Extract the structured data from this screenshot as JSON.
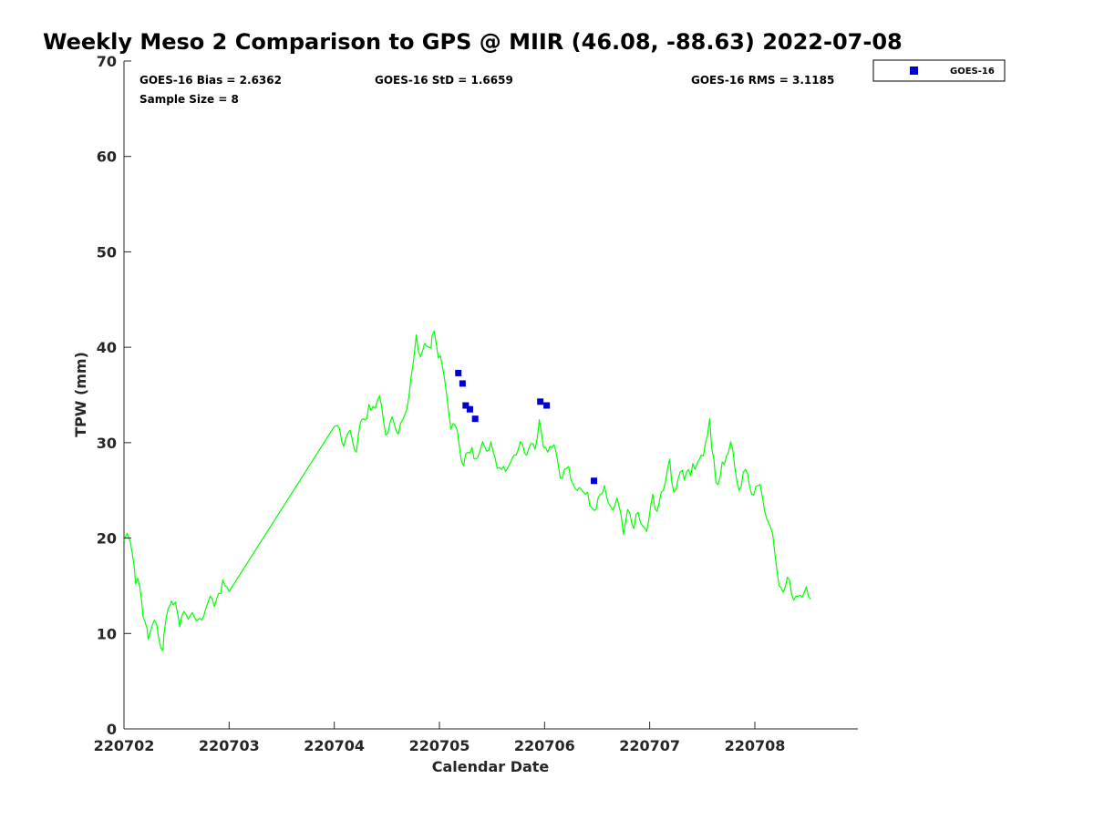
{
  "chart_data": {
    "type": "scatter",
    "title": "Weekly Meso 2 Comparison to GPS @ MIIR (46.08, -88.63) 2022-07-08",
    "xlabel": "Calendar Date",
    "ylabel": "TPW (mm)",
    "xlim": [
      0.0,
      6.98
    ],
    "ylim": [
      0,
      70
    ],
    "x_ticks": [
      {
        "pos": 0,
        "label": "220702"
      },
      {
        "pos": 1,
        "label": "220703"
      },
      {
        "pos": 2,
        "label": "220704"
      },
      {
        "pos": 3,
        "label": "220705"
      },
      {
        "pos": 4,
        "label": "220706"
      },
      {
        "pos": 5,
        "label": "220707"
      },
      {
        "pos": 6,
        "label": "220708"
      }
    ],
    "y_ticks": [
      0,
      10,
      20,
      30,
      40,
      50,
      60,
      70
    ],
    "grid": false,
    "legend_position": "outside-top-right",
    "stats": {
      "bias": "GOES-16 Bias = 2.6362",
      "std": "GOES-16 StD = 1.6659",
      "rms": "GOES-16 RMS = 3.1185",
      "sample": "Sample Size = 8"
    },
    "series": [
      {
        "name": "GPS",
        "kind": "line",
        "color": "#00ff00",
        "points": [
          [
            0.0,
            19.8
          ],
          [
            0.03,
            20.5
          ],
          [
            0.06,
            19.6
          ],
          [
            0.08,
            18.3
          ],
          [
            0.1,
            16.8
          ],
          [
            0.11,
            15.2
          ],
          [
            0.13,
            15.8
          ],
          [
            0.15,
            14.9
          ],
          [
            0.17,
            13.2
          ],
          [
            0.18,
            11.8
          ],
          [
            0.2,
            11.2
          ],
          [
            0.22,
            10.5
          ],
          [
            0.23,
            9.4
          ],
          [
            0.25,
            10.1
          ],
          [
            0.27,
            10.9
          ],
          [
            0.29,
            11.4
          ],
          [
            0.31,
            11.0
          ],
          [
            0.33,
            9.5
          ],
          [
            0.35,
            8.5
          ],
          [
            0.37,
            8.2
          ],
          [
            0.38,
            9.9
          ],
          [
            0.4,
            11.5
          ],
          [
            0.42,
            12.6
          ],
          [
            0.44,
            13.0
          ],
          [
            0.45,
            13.4
          ],
          [
            0.47,
            13.0
          ],
          [
            0.49,
            13.3
          ],
          [
            0.5,
            12.6
          ],
          [
            0.52,
            11.5
          ],
          [
            0.53,
            10.7
          ],
          [
            0.55,
            11.8
          ],
          [
            0.57,
            12.3
          ],
          [
            0.59,
            12.0
          ],
          [
            0.61,
            11.5
          ],
          [
            0.63,
            11.9
          ],
          [
            0.65,
            12.2
          ],
          [
            0.67,
            11.7
          ],
          [
            0.69,
            11.3
          ],
          [
            0.72,
            11.6
          ],
          [
            0.74,
            11.4
          ],
          [
            0.76,
            11.9
          ],
          [
            0.78,
            12.7
          ],
          [
            0.8,
            13.3
          ],
          [
            0.82,
            13.9
          ],
          [
            0.84,
            13.6
          ],
          [
            0.86,
            12.8
          ],
          [
            0.88,
            13.6
          ],
          [
            0.9,
            14.2
          ],
          [
            0.92,
            14.2
          ],
          [
            0.94,
            15.6
          ],
          [
            0.96,
            15.0
          ],
          [
            0.98,
            14.9
          ],
          [
            1.0,
            14.4
          ],
          [
            2.0,
            31.7
          ],
          [
            2.03,
            31.8
          ],
          [
            2.05,
            31.5
          ],
          [
            2.07,
            30.2
          ],
          [
            2.09,
            29.6
          ],
          [
            2.11,
            30.5
          ],
          [
            2.13,
            31.0
          ],
          [
            2.15,
            31.3
          ],
          [
            2.17,
            30.4
          ],
          [
            2.19,
            29.3
          ],
          [
            2.21,
            29.0
          ],
          [
            2.23,
            30.9
          ],
          [
            2.25,
            32.2
          ],
          [
            2.27,
            32.5
          ],
          [
            2.29,
            32.4
          ],
          [
            2.31,
            32.5
          ],
          [
            2.33,
            34.0
          ],
          [
            2.35,
            33.4
          ],
          [
            2.37,
            33.8
          ],
          [
            2.39,
            33.6
          ],
          [
            2.41,
            34.4
          ],
          [
            2.43,
            34.9
          ],
          [
            2.45,
            33.8
          ],
          [
            2.47,
            32.1
          ],
          [
            2.49,
            30.8
          ],
          [
            2.51,
            31.0
          ],
          [
            2.53,
            32.1
          ],
          [
            2.55,
            32.7
          ],
          [
            2.57,
            32.0
          ],
          [
            2.59,
            31.2
          ],
          [
            2.61,
            30.9
          ],
          [
            2.63,
            32.0
          ],
          [
            2.65,
            32.4
          ],
          [
            2.67,
            32.9
          ],
          [
            2.69,
            33.5
          ],
          [
            2.71,
            34.8
          ],
          [
            2.73,
            36.8
          ],
          [
            2.75,
            38.3
          ],
          [
            2.77,
            40.2
          ],
          [
            2.78,
            41.3
          ],
          [
            2.8,
            39.6
          ],
          [
            2.82,
            39.0
          ],
          [
            2.84,
            39.6
          ],
          [
            2.86,
            40.4
          ],
          [
            2.88,
            40.1
          ],
          [
            2.9,
            40.0
          ],
          [
            2.92,
            39.9
          ],
          [
            2.93,
            41.2
          ],
          [
            2.95,
            41.7
          ],
          [
            2.97,
            40.4
          ],
          [
            2.99,
            38.9
          ],
          [
            3.01,
            39.1
          ],
          [
            3.03,
            37.9
          ],
          [
            3.05,
            36.6
          ],
          [
            3.07,
            34.9
          ],
          [
            3.09,
            33.0
          ],
          [
            3.11,
            31.4
          ],
          [
            3.13,
            32.0
          ],
          [
            3.15,
            31.8
          ],
          [
            3.17,
            31.3
          ],
          [
            3.19,
            29.6
          ],
          [
            3.21,
            28.0
          ],
          [
            3.23,
            27.6
          ],
          [
            3.25,
            28.8
          ],
          [
            3.27,
            29.0
          ],
          [
            3.29,
            28.9
          ],
          [
            3.31,
            29.5
          ],
          [
            3.33,
            28.3
          ],
          [
            3.35,
            28.3
          ],
          [
            3.37,
            28.6
          ],
          [
            3.39,
            29.3
          ],
          [
            3.41,
            30.1
          ],
          [
            3.43,
            29.6
          ],
          [
            3.45,
            29.1
          ],
          [
            3.47,
            29.2
          ],
          [
            3.49,
            30.1
          ],
          [
            3.51,
            29.1
          ],
          [
            3.53,
            28.4
          ],
          [
            3.55,
            27.3
          ],
          [
            3.57,
            27.4
          ],
          [
            3.59,
            27.2
          ],
          [
            3.61,
            27.5
          ],
          [
            3.63,
            27.0
          ],
          [
            3.65,
            27.4
          ],
          [
            3.67,
            27.8
          ],
          [
            3.69,
            28.3
          ],
          [
            3.71,
            28.7
          ],
          [
            3.73,
            28.7
          ],
          [
            3.75,
            29.3
          ],
          [
            3.77,
            30.1
          ],
          [
            3.79,
            29.9
          ],
          [
            3.81,
            28.9
          ],
          [
            3.83,
            28.7
          ],
          [
            3.85,
            29.4
          ],
          [
            3.87,
            29.9
          ],
          [
            3.89,
            29.9
          ],
          [
            3.91,
            29.3
          ],
          [
            3.93,
            30.4
          ],
          [
            3.95,
            32.4
          ],
          [
            3.97,
            31.0
          ],
          [
            3.99,
            29.5
          ],
          [
            4.01,
            29.5
          ],
          [
            4.03,
            29.0
          ],
          [
            4.05,
            29.6
          ],
          [
            4.07,
            29.5
          ],
          [
            4.09,
            29.8
          ],
          [
            4.11,
            29.0
          ],
          [
            4.13,
            27.7
          ],
          [
            4.15,
            26.3
          ],
          [
            4.17,
            26.3
          ],
          [
            4.19,
            27.2
          ],
          [
            4.21,
            27.3
          ],
          [
            4.23,
            27.5
          ],
          [
            4.25,
            26.1
          ],
          [
            4.27,
            25.7
          ],
          [
            4.29,
            25.2
          ],
          [
            4.31,
            25.0
          ],
          [
            4.33,
            25.3
          ],
          [
            4.35,
            25.1
          ],
          [
            4.37,
            24.8
          ],
          [
            4.39,
            24.6
          ],
          [
            4.41,
            24.8
          ],
          [
            4.43,
            23.4
          ],
          [
            4.45,
            23.2
          ],
          [
            4.47,
            22.9
          ],
          [
            4.49,
            23.0
          ],
          [
            4.51,
            24.2
          ],
          [
            4.53,
            24.6
          ],
          [
            4.55,
            24.7
          ],
          [
            4.57,
            25.5
          ],
          [
            4.59,
            24.3
          ],
          [
            4.61,
            23.6
          ],
          [
            4.63,
            23.3
          ],
          [
            4.65,
            22.9
          ],
          [
            4.67,
            23.5
          ],
          [
            4.69,
            24.2
          ],
          [
            4.71,
            23.3
          ],
          [
            4.73,
            22.3
          ],
          [
            4.75,
            20.4
          ],
          [
            4.77,
            21.6
          ],
          [
            4.79,
            23.0
          ],
          [
            4.81,
            22.7
          ],
          [
            4.83,
            21.5
          ],
          [
            4.85,
            21.0
          ],
          [
            4.87,
            22.5
          ],
          [
            4.89,
            22.7
          ],
          [
            4.91,
            21.7
          ],
          [
            4.93,
            21.3
          ],
          [
            4.95,
            21.1
          ],
          [
            4.97,
            20.7
          ],
          [
            4.99,
            21.8
          ],
          [
            5.01,
            23.4
          ],
          [
            5.03,
            24.6
          ],
          [
            5.05,
            23.1
          ],
          [
            5.07,
            22.8
          ],
          [
            5.09,
            23.7
          ],
          [
            5.11,
            24.8
          ],
          [
            5.13,
            25.0
          ],
          [
            5.15,
            25.9
          ],
          [
            5.17,
            27.3
          ],
          [
            5.19,
            28.3
          ],
          [
            5.21,
            25.8
          ],
          [
            5.23,
            24.8
          ],
          [
            5.25,
            25.1
          ],
          [
            5.27,
            26.2
          ],
          [
            5.29,
            26.9
          ],
          [
            5.31,
            27.1
          ],
          [
            5.33,
            26.1
          ],
          [
            5.35,
            26.9
          ],
          [
            5.37,
            27.2
          ],
          [
            5.39,
            26.5
          ],
          [
            5.41,
            27.8
          ],
          [
            5.43,
            27.2
          ],
          [
            5.45,
            27.8
          ],
          [
            5.47,
            28.2
          ],
          [
            5.49,
            28.7
          ],
          [
            5.51,
            28.6
          ],
          [
            5.53,
            30.0
          ],
          [
            5.55,
            30.8
          ],
          [
            5.57,
            32.5
          ],
          [
            5.59,
            29.4
          ],
          [
            5.61,
            28.3
          ],
          [
            5.63,
            25.8
          ],
          [
            5.65,
            25.6
          ],
          [
            5.67,
            26.4
          ],
          [
            5.69,
            28.0
          ],
          [
            5.71,
            27.7
          ],
          [
            5.73,
            28.6
          ],
          [
            5.75,
            29.0
          ],
          [
            5.77,
            30.1
          ],
          [
            5.79,
            29.2
          ],
          [
            5.81,
            27.3
          ],
          [
            5.83,
            25.9
          ],
          [
            5.85,
            25.0
          ],
          [
            5.87,
            25.4
          ],
          [
            5.89,
            26.9
          ],
          [
            5.91,
            27.2
          ],
          [
            5.93,
            26.8
          ],
          [
            5.95,
            25.4
          ],
          [
            5.97,
            24.6
          ],
          [
            5.99,
            24.5
          ],
          [
            6.01,
            25.4
          ],
          [
            6.03,
            25.5
          ],
          [
            6.05,
            25.6
          ],
          [
            6.07,
            24.4
          ],
          [
            6.09,
            23.0
          ],
          [
            6.11,
            22.1
          ],
          [
            6.13,
            21.6
          ],
          [
            6.15,
            21.1
          ],
          [
            6.17,
            20.4
          ],
          [
            6.19,
            18.4
          ],
          [
            6.21,
            16.6
          ],
          [
            6.23,
            15.0
          ],
          [
            6.25,
            14.8
          ],
          [
            6.27,
            14.3
          ],
          [
            6.29,
            14.9
          ],
          [
            6.31,
            15.9
          ],
          [
            6.33,
            15.6
          ],
          [
            6.35,
            14.1
          ],
          [
            6.37,
            13.5
          ],
          [
            6.39,
            13.9
          ],
          [
            6.41,
            13.9
          ],
          [
            6.43,
            14.0
          ],
          [
            6.45,
            13.8
          ],
          [
            6.47,
            14.3
          ],
          [
            6.49,
            14.9
          ],
          [
            6.51,
            13.9
          ],
          [
            6.53,
            13.6
          ]
        ]
      },
      {
        "name": "GOES-16",
        "kind": "scatter",
        "color": "#0000cc",
        "points": [
          [
            3.18,
            37.3
          ],
          [
            3.22,
            36.2
          ],
          [
            3.25,
            33.9
          ],
          [
            3.29,
            33.5
          ],
          [
            3.34,
            32.5
          ],
          [
            3.96,
            34.3
          ],
          [
            4.02,
            33.9
          ],
          [
            4.47,
            26.0
          ]
        ]
      }
    ]
  }
}
